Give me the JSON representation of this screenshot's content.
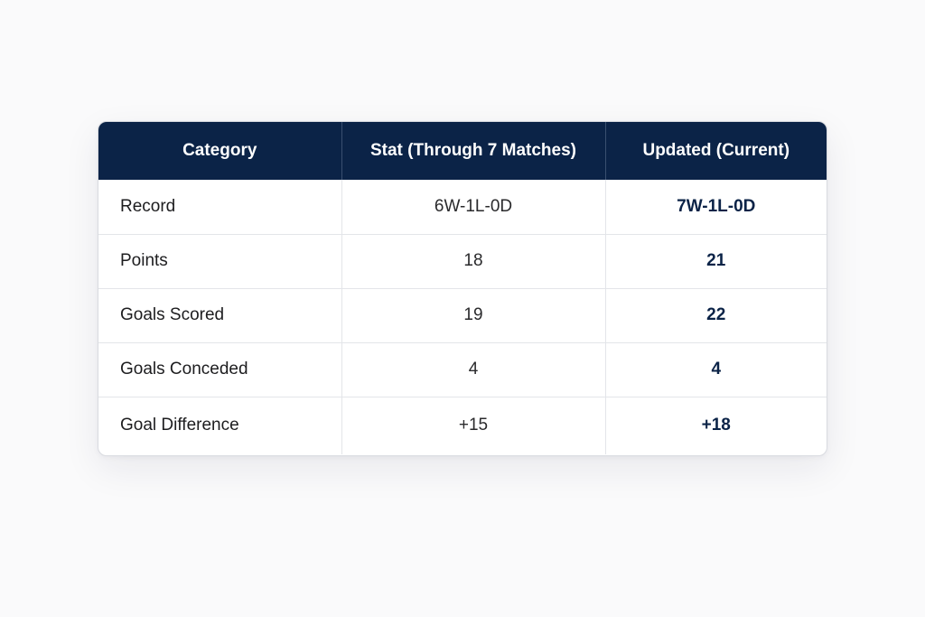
{
  "table": {
    "headers": [
      "Category",
      "Stat (Through 7 Matches)",
      "Updated (Current)"
    ],
    "rows": [
      {
        "category": "Record",
        "previous": "6W-1L-0D",
        "current": "7W-1L-0D"
      },
      {
        "category": "Points",
        "previous": "18",
        "current": "21"
      },
      {
        "category": "Goals Scored",
        "previous": "19",
        "current": "22"
      },
      {
        "category": "Goals Conceded",
        "previous": "4",
        "current": "4"
      },
      {
        "category": "Goal Difference",
        "previous": "+15",
        "current": "+18"
      }
    ]
  },
  "colors": {
    "header_bg": "#0b2347",
    "header_text": "#ffffff",
    "accent_text": "#0b2347"
  }
}
